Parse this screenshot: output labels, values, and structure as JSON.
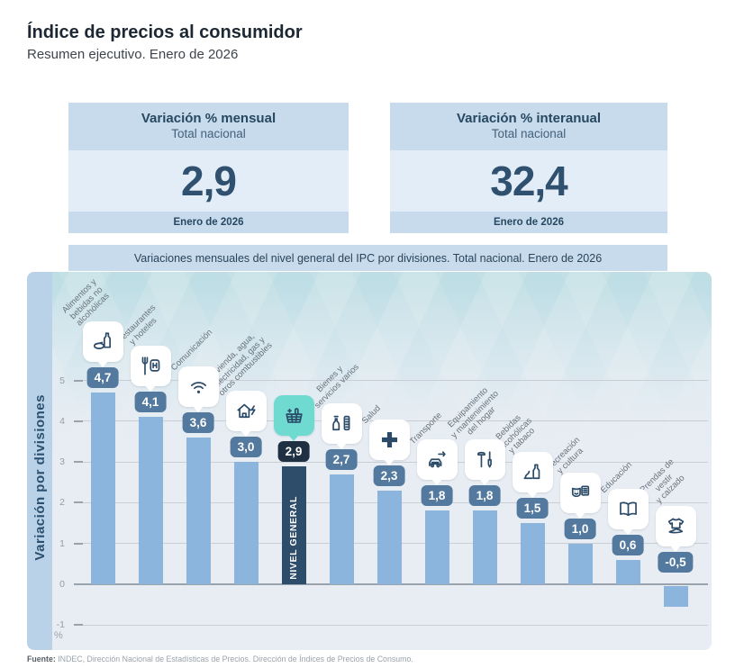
{
  "header": {
    "title": "Índice de precios al consumidor",
    "subtitle": "Resumen ejecutivo. Enero de 2026"
  },
  "cards": [
    {
      "title": "Variación % mensual",
      "subtitle": "Total nacional",
      "value": "2,9",
      "period": "Enero de 2026"
    },
    {
      "title": "Variación % interanual",
      "subtitle": "Total nacional",
      "value": "32,4",
      "period": "Enero de 2026"
    }
  ],
  "chart": {
    "band_title": "Variaciones mensuales del nivel general del IPC por divisiones. Total nacional. Enero de 2026",
    "y_axis_label": "Variación por divisiones",
    "unit_label": "%"
  },
  "chart_data": {
    "type": "bar",
    "title": "Variaciones mensuales del nivel general del IPC por divisiones. Total nacional. Enero de 2026",
    "ylabel": "Variación por divisiones",
    "unit": "%",
    "ylim": [
      -1,
      5
    ],
    "yticks": [
      5,
      4,
      3,
      2,
      1,
      0,
      -1
    ],
    "grid": true,
    "legend": "none",
    "bars": [
      {
        "category": "Alimentos y bebidas no alcohólicas",
        "label_lines": "Alimentos y\nbebidas no\nalcohólicas",
        "value": 4.7,
        "value_label": "4,7",
        "icon": "food-icon",
        "highlighted": false
      },
      {
        "category": "Restaurantes y hoteles",
        "label_lines": "Restaurantes\ny hoteles",
        "value": 4.1,
        "value_label": "4,1",
        "icon": "restaurant-icon",
        "highlighted": false
      },
      {
        "category": "Comunicación",
        "label_lines": "Comunicación",
        "value": 3.6,
        "value_label": "3,6",
        "icon": "wifi-icon",
        "highlighted": false
      },
      {
        "category": "Vivienda, agua, electricidad, gas y otros combustibles",
        "label_lines": "Vivienda, agua,\nelectricidad, gas y\notros combustibles",
        "value": 3.0,
        "value_label": "3,0",
        "icon": "house-energy-icon",
        "highlighted": false
      },
      {
        "category": "Nivel general",
        "label_lines": "",
        "bar_text": "NIVEL GENERAL",
        "value": 2.9,
        "value_label": "2,9",
        "icon": "basket-icon",
        "highlighted": true
      },
      {
        "category": "Bienes y servicios varios",
        "label_lines": "Bienes y\nservicios varios",
        "value": 2.7,
        "value_label": "2,7",
        "icon": "goods-icon",
        "highlighted": false
      },
      {
        "category": "Salud",
        "label_lines": "Salud",
        "value": 2.3,
        "value_label": "2,3",
        "icon": "health-cross-icon",
        "highlighted": false
      },
      {
        "category": "Transporte",
        "label_lines": "Transporte",
        "value": 1.8,
        "value_label": "1,8",
        "icon": "transport-icon",
        "highlighted": false
      },
      {
        "category": "Equipamiento y mantenimiento del hogar",
        "label_lines": "Equipamiento\ny mantenimiento\ndel hogar",
        "value": 1.8,
        "value_label": "1,8",
        "icon": "tools-icon",
        "highlighted": false
      },
      {
        "category": "Bebidas alcohólicas y tabaco",
        "label_lines": "Bebidas\nalcohólicas\ny tabaco",
        "value": 1.5,
        "value_label": "1,5",
        "icon": "drinks-tobacco-icon",
        "highlighted": false
      },
      {
        "category": "Recreación y cultura",
        "label_lines": "Recreación\ny cultura",
        "value": 1.0,
        "value_label": "1,0",
        "icon": "recreation-icon",
        "highlighted": false
      },
      {
        "category": "Educación",
        "label_lines": "Educación",
        "value": 0.6,
        "value_label": "0,6",
        "icon": "education-icon",
        "highlighted": false
      },
      {
        "category": "Prendas de vestir y calzado",
        "label_lines": "Prendas de vestir\ny calzado",
        "value": -0.5,
        "value_label": "-0,5",
        "icon": "clothing-icon",
        "highlighted": false
      }
    ]
  },
  "colors": {
    "accent_teal": "#6fdbd0",
    "bar_blue": "#8cb5de",
    "bar_highlight": "#2e4d6b",
    "pill_blue": "#54799f",
    "pill_highlight": "#1e3042",
    "band_bg": "#c7dbed",
    "card_body_bg": "#e3edf7",
    "navy": "#274860"
  },
  "footer": {
    "source_label": "Fuente:",
    "source_text": "INDEC, Dirección Nacional de Estadísticas de Precios. Dirección de Índices de Precios de Consumo."
  }
}
